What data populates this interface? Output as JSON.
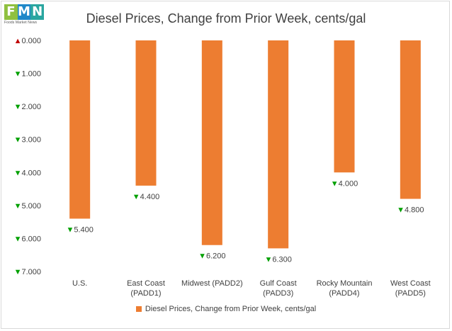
{
  "logo": {
    "letters": [
      "F",
      "M",
      "N"
    ],
    "colors": [
      "#8fc03f",
      "#1f88c9",
      "#2aa6a0"
    ],
    "tagline": "Foods Market News"
  },
  "chart_data": {
    "type": "bar",
    "title": "Diesel Prices, Change from Prior Week, cents/gal",
    "categories": [
      [
        "U.S."
      ],
      [
        "East Coast",
        "(PADD1)"
      ],
      [
        "Midwest (PADD2)"
      ],
      [
        "Gulf Coast",
        "(PADD3)"
      ],
      [
        "Rocky Mountain",
        "(PADD4)"
      ],
      [
        "West Coast",
        "(PADD5)"
      ]
    ],
    "series": [
      {
        "name": "Diesel Prices, Change from Prior Week, cents/gal",
        "values": [
          -5.4,
          -4.4,
          -6.2,
          -6.3,
          -4.0,
          -4.8
        ],
        "color": "#ed7d31"
      }
    ],
    "data_labels": [
      "5.400",
      "4.400",
      "6.200",
      "6.300",
      "4.000",
      "4.800"
    ],
    "y_ticks": [
      {
        "value": 0,
        "label": "0.000",
        "marker": "up"
      },
      {
        "value": -1,
        "label": "1.000",
        "marker": "down"
      },
      {
        "value": -2,
        "label": "2.000",
        "marker": "down"
      },
      {
        "value": -3,
        "label": "3.000",
        "marker": "down"
      },
      {
        "value": -4,
        "label": "4.000",
        "marker": "down"
      },
      {
        "value": -5,
        "label": "5.000",
        "marker": "down"
      },
      {
        "value": -6,
        "label": "6.000",
        "marker": "down"
      },
      {
        "value": -7,
        "label": "7.000",
        "marker": "down"
      }
    ],
    "ylim": [
      -7,
      0
    ],
    "grid": false,
    "legend_position": "bottom",
    "colors": {
      "up": "#c00000",
      "down": "#00a000",
      "text": "#404040"
    }
  }
}
